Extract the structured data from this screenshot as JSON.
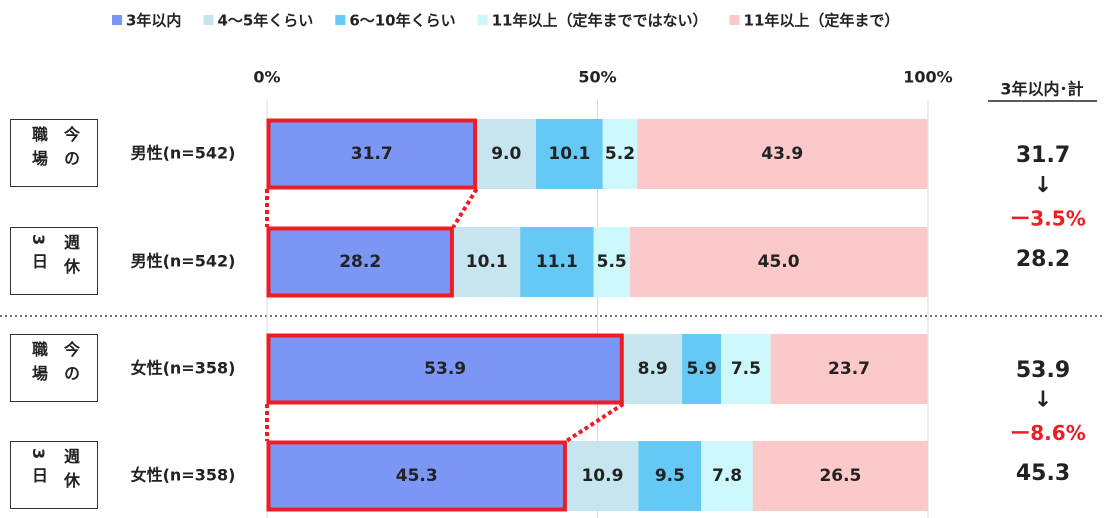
{
  "chart_data": {
    "type": "stacked-barh",
    "categories": [
      "男性(n=542)",
      "男性(n=542)",
      "女性(n=358)",
      "女性(n=358)"
    ],
    "groups": [
      "今の職場",
      "週休3日",
      "今の職場",
      "週休3日"
    ],
    "series": [
      {
        "name": "3年以内",
        "color": "#7b96f5",
        "values": [
          31.7,
          28.2,
          53.9,
          45.3
        ],
        "value_labels": [
          "31.7",
          "28.2",
          "53.9",
          "45.3"
        ]
      },
      {
        "name": "4〜5年くらい",
        "color": "#c6e5ee",
        "values": [
          9.0,
          10.1,
          8.9,
          10.9
        ],
        "value_labels": [
          "9.0",
          "10.1",
          "8.9",
          "10.9"
        ]
      },
      {
        "name": "6〜10年くらい",
        "color": "#66c8f5",
        "values": [
          10.1,
          11.1,
          5.9,
          9.5
        ],
        "value_labels": [
          "10.1",
          "11.1",
          "5.9",
          "9.5"
        ]
      },
      {
        "name": "11年以上（定年までではない）",
        "color": "#ccf7fb",
        "values": [
          5.2,
          5.5,
          7.5,
          7.8
        ],
        "value_labels": [
          "5.2",
          "5.5",
          "7.5",
          "7.8"
        ]
      },
      {
        "name": "11年以上（定年まで）",
        "color": "#fbc9c9",
        "values": [
          43.9,
          45.0,
          23.7,
          26.5
        ],
        "value_labels": [
          "43.9",
          "45.0",
          "23.7",
          "26.5"
        ]
      }
    ],
    "xlim": [
      0,
      100
    ],
    "xticks": [
      {
        "value": 0,
        "label": "0%"
      },
      {
        "value": 50,
        "label": "50%"
      },
      {
        "value": 100,
        "label": "100%"
      }
    ],
    "grid": true,
    "summary_title": "3年以内･計",
    "changes": [
      "ー3.5%",
      "ー8.6%"
    ],
    "highlight_color": "#ee1c25"
  }
}
